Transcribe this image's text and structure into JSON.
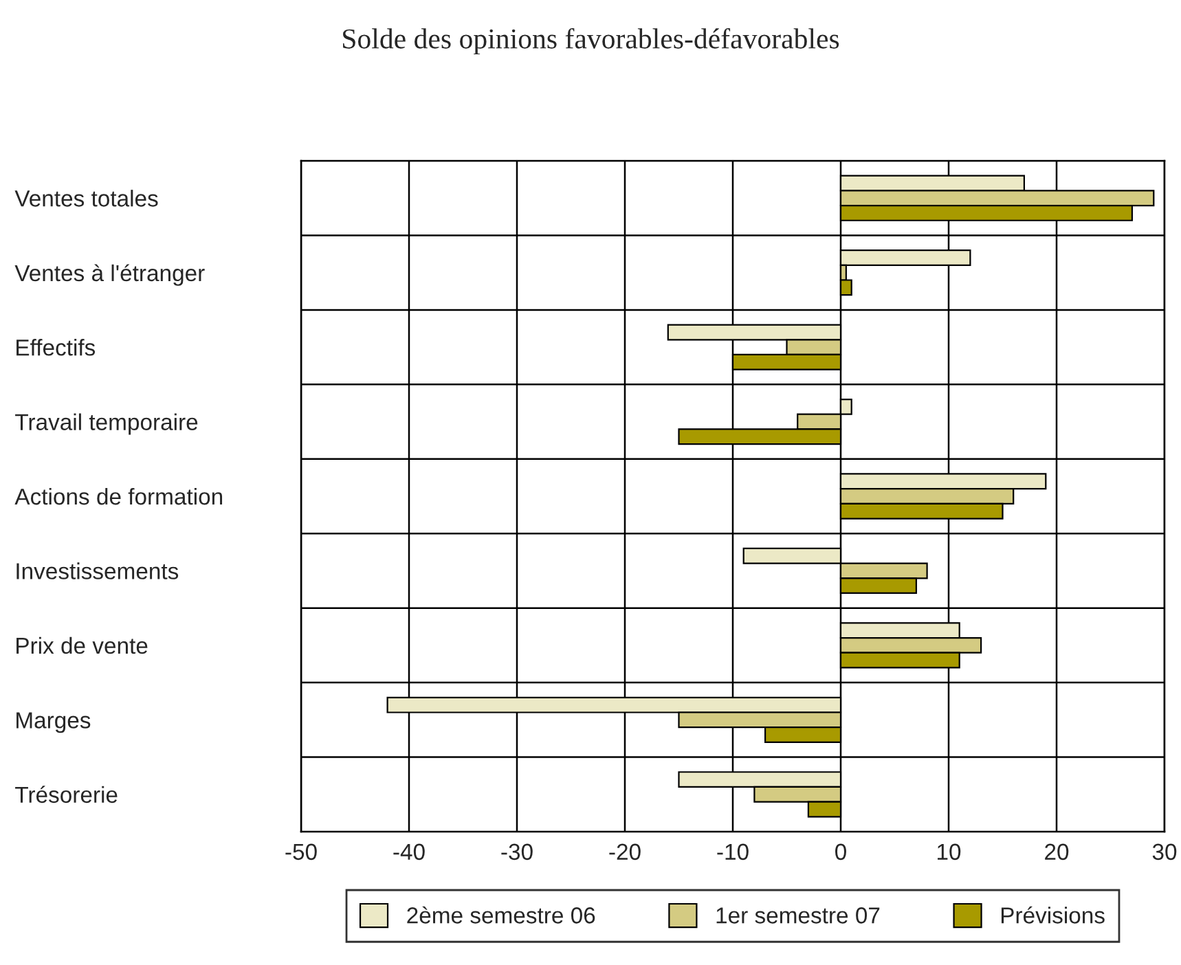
{
  "chart_data": {
    "type": "bar",
    "orientation": "horizontal",
    "title": "Solde des opinions favorables-défavorables",
    "categories": [
      "Ventes totales",
      "Ventes à l'étranger",
      "Effectifs",
      "Travail temporaire",
      "Actions de formation",
      "Investissements",
      "Prix de vente",
      "Marges",
      "Trésorerie"
    ],
    "series": [
      {
        "name": "2ème semestre 06",
        "color": "#ece9c6",
        "values": [
          17,
          12,
          -16,
          1,
          19,
          -9,
          11,
          -42,
          -15
        ]
      },
      {
        "name": "1er semestre 07",
        "color": "#d4cb82",
        "values": [
          29,
          0.5,
          -5,
          -4,
          16,
          8,
          13,
          -15,
          -8
        ]
      },
      {
        "name": "Prévisions",
        "color": "#a89a00",
        "values": [
          27,
          1,
          -10,
          -15,
          15,
          7,
          11,
          -7,
          -3
        ]
      }
    ],
    "xlim": [
      -50,
      30
    ],
    "xticks": [
      -50,
      -40,
      -30,
      -20,
      -10,
      0,
      10,
      20,
      30
    ],
    "grid": true,
    "legend": "bottom"
  }
}
